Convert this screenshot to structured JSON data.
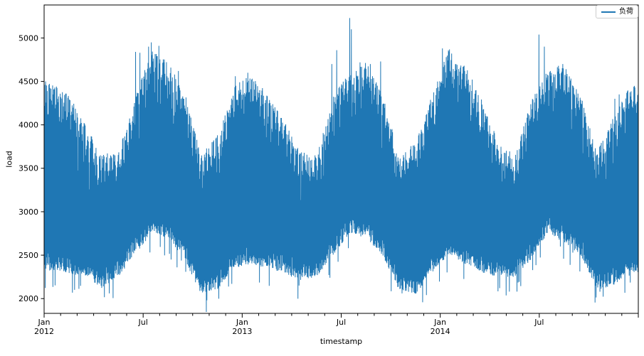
{
  "chart_data": {
    "type": "line",
    "title": "",
    "xlabel": "timestamp",
    "ylabel": "load",
    "legend_label": "负荷",
    "legend_position": "upper right",
    "line_color": "#1f77b4",
    "background_color": "#ffffff",
    "grid": false,
    "x_range_label": "Jan 2012 to Dec 2014",
    "ylim": [
      1830,
      5380
    ],
    "y_ticks": [
      2000,
      2500,
      3000,
      3500,
      4000,
      4500,
      5000
    ],
    "months_total": 36,
    "total_days": 1096,
    "x_major_ticks": [
      {
        "month_index": 0,
        "label": "Jan",
        "year": "2012"
      },
      {
        "month_index": 6,
        "label": "Jul",
        "year": ""
      },
      {
        "month_index": 12,
        "label": "Jan",
        "year": "2013"
      },
      {
        "month_index": 18,
        "label": "Jul",
        "year": ""
      },
      {
        "month_index": 24,
        "label": "Jan",
        "year": "2014"
      },
      {
        "month_index": 30,
        "label": "Jul",
        "year": ""
      },
      {
        "month_index": 36,
        "label": "",
        "year": ""
      }
    ],
    "monthly_envelope": {
      "top": [
        4480,
        4350,
        4000,
        3660,
        3700,
        4300,
        4900,
        4720,
        4400,
        3650,
        3900,
        4450,
        4600,
        4350,
        4050,
        3700,
        3650,
        4350,
        4600,
        4730,
        4350,
        3650,
        3800,
        4350,
        4880,
        4700,
        4300,
        3800,
        3650,
        4300,
        4650,
        4700,
        4350,
        3700,
        4100,
        4450
      ],
      "bottom": [
        2320,
        2280,
        2250,
        2120,
        2250,
        2500,
        2750,
        2700,
        2450,
        2050,
        2100,
        2350,
        2400,
        2350,
        2300,
        2200,
        2250,
        2500,
        2750,
        2700,
        2500,
        2100,
        2050,
        2300,
        2500,
        2400,
        2300,
        2250,
        2250,
        2450,
        2750,
        2650,
        2500,
        2100,
        2150,
        2300
      ]
    },
    "peak_spikes": [
      {
        "day": 2,
        "value": 4500
      },
      {
        "day": 40,
        "value": 4360
      },
      {
        "day": 168,
        "value": 4840
      },
      {
        "day": 176,
        "value": 4830
      },
      {
        "day": 192,
        "value": 4900
      },
      {
        "day": 197,
        "value": 4950
      },
      {
        "day": 211,
        "value": 4910
      },
      {
        "day": 220,
        "value": 4720
      },
      {
        "day": 247,
        "value": 4620
      },
      {
        "day": 352,
        "value": 4560
      },
      {
        "day": 375,
        "value": 4600
      },
      {
        "day": 386,
        "value": 4500
      },
      {
        "day": 530,
        "value": 4700
      },
      {
        "day": 539,
        "value": 4860
      },
      {
        "day": 563,
        "value": 5230
      },
      {
        "day": 566,
        "value": 5100
      },
      {
        "day": 582,
        "value": 4720
      },
      {
        "day": 601,
        "value": 4700
      },
      {
        "day": 620,
        "value": 4730
      },
      {
        "day": 734,
        "value": 4880
      },
      {
        "day": 741,
        "value": 4780
      },
      {
        "day": 759,
        "value": 4700
      },
      {
        "day": 912,
        "value": 5040
      },
      {
        "day": 922,
        "value": 4900
      },
      {
        "day": 933,
        "value": 4620
      },
      {
        "day": 956,
        "value": 4700
      },
      {
        "day": 1052,
        "value": 4300
      },
      {
        "day": 1060,
        "value": 4350
      },
      {
        "day": 1089,
        "value": 4430
      }
    ],
    "dip_spikes": [
      {
        "day": 120,
        "value": 2060
      },
      {
        "day": 300,
        "value": 1980
      },
      {
        "day": 470,
        "value": 2150
      },
      {
        "day": 660,
        "value": 2060
      },
      {
        "day": 840,
        "value": 2120
      },
      {
        "day": 1025,
        "value": 2080
      }
    ],
    "observed_max": 5230,
    "observed_min": 1980,
    "render": {
      "seed": 42,
      "hi_jitter": 340,
      "lo_jitter": 240,
      "weekend_drop": 170,
      "gap_chance": 0.07,
      "gap_drop": 320,
      "low_gap_chance": 0.05,
      "low_gap_drop": 220,
      "min_daily_range": 220
    }
  }
}
